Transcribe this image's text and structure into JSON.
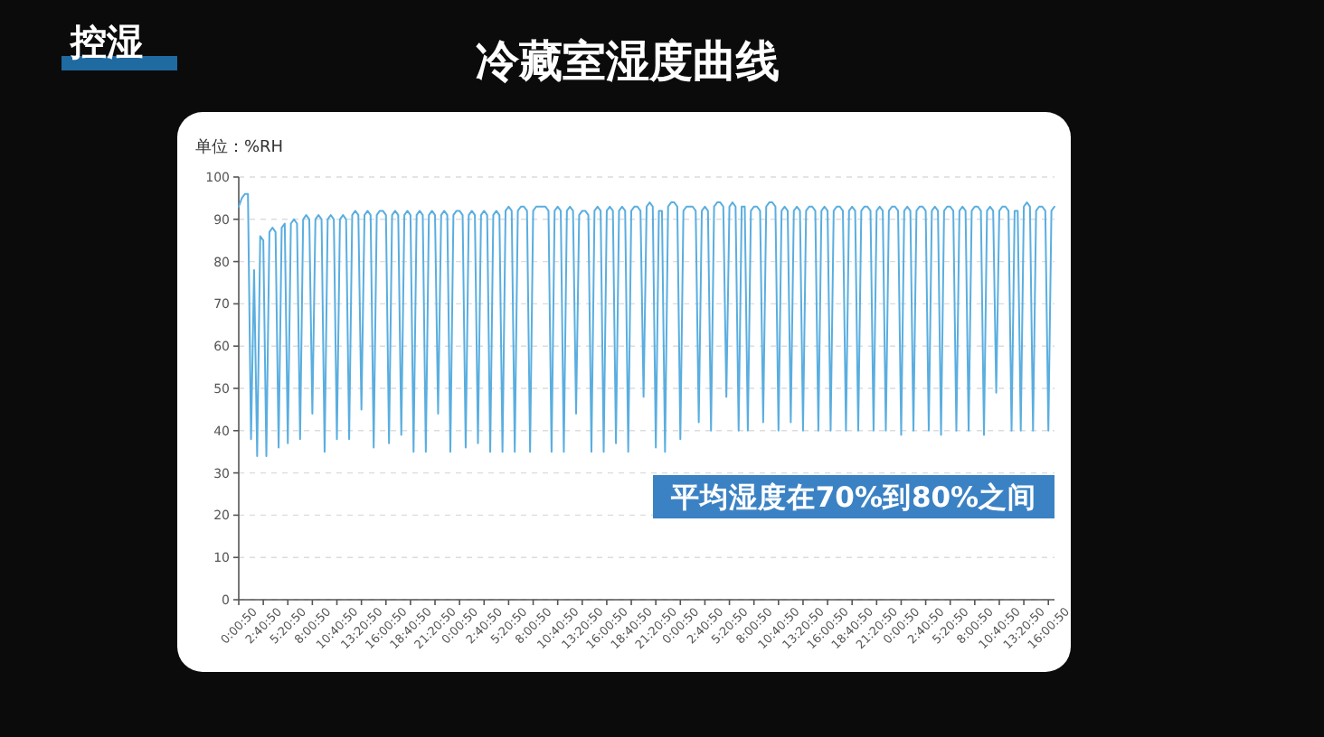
{
  "chart_data": {
    "type": "line",
    "title": "冷藏室湿度曲线",
    "ylabel": "单位：%RH",
    "annotations": [
      "控湿",
      "平均湿度在70%到80%之间"
    ],
    "categories": [
      "0:00:50",
      null,
      null,
      null,
      null,
      null,
      null,
      null,
      "2:40:50",
      null,
      null,
      null,
      null,
      null,
      null,
      null,
      "5:20:50",
      null,
      null,
      null,
      null,
      null,
      null,
      null,
      "8:00:50",
      null,
      null,
      null,
      null,
      null,
      null,
      null,
      "10:40:50",
      null,
      null,
      null,
      null,
      null,
      null,
      null,
      "13:20:50",
      null,
      null,
      null,
      null,
      null,
      null,
      null,
      "16:00:50",
      null,
      null,
      null,
      null,
      null,
      null,
      null,
      "18:40:50",
      null,
      null,
      null,
      null,
      null,
      null,
      null,
      "21:20:50",
      null,
      null,
      null,
      null,
      null,
      null,
      null,
      "0:00:50",
      null,
      null,
      null,
      null,
      null,
      null,
      null,
      "2:40:50",
      null,
      null,
      null,
      null,
      null,
      null,
      null,
      "5:20:50",
      null,
      null,
      null,
      null,
      null,
      null,
      null,
      "8:00:50",
      null,
      null,
      null,
      null,
      null,
      null,
      null,
      "10:40:50",
      null,
      null,
      null,
      null,
      null,
      null,
      null,
      "13:20:50",
      null,
      null,
      null,
      null,
      null,
      null,
      null,
      "16:00:50",
      null,
      null,
      null,
      null,
      null,
      null,
      null,
      "18:40:50",
      null,
      null,
      null,
      null,
      null,
      null,
      null,
      "21:20:50",
      null,
      null,
      null,
      null,
      null,
      null,
      null,
      "0:00:50",
      null,
      null,
      null,
      null,
      null,
      null,
      null,
      "2:40:50",
      null,
      null,
      null,
      null,
      null,
      null,
      null,
      "5:20:50",
      null,
      null,
      null,
      null,
      null,
      null,
      null,
      "8:00:50",
      null,
      null,
      null,
      null,
      null,
      null,
      null,
      "10:40:50",
      null,
      null,
      null,
      null,
      null,
      null,
      null,
      "13:20:50",
      null,
      null,
      null,
      null,
      null,
      null,
      null,
      "16:00:50",
      null,
      null,
      null,
      null,
      null,
      null,
      null,
      "18:40:50",
      null,
      null,
      null,
      null,
      null,
      null,
      null,
      "21:20:50",
      null,
      null,
      null,
      null,
      null,
      null,
      null,
      "0:00:50",
      null,
      null,
      null,
      null,
      null,
      null,
      null,
      "2:40:50",
      null,
      null,
      null,
      null,
      null,
      null,
      null,
      "5:20:50",
      null,
      null,
      null,
      null,
      null,
      null,
      null,
      "8:00:50",
      null,
      null,
      null,
      null,
      null,
      null,
      null,
      "10:40:50",
      null,
      null,
      null,
      null,
      null,
      null,
      null,
      "13:20:50",
      null,
      null,
      null,
      null,
      null,
      null,
      null,
      "16:00:50",
      null,
      null
    ],
    "series": [
      {
        "color": "#5aaee0",
        "values": [
          93,
          95,
          96,
          96,
          38,
          78,
          34,
          86,
          85,
          34,
          87,
          88,
          87,
          36,
          88,
          89,
          37,
          89,
          90,
          89,
          38,
          90,
          91,
          90,
          44,
          90,
          91,
          90,
          35,
          90,
          91,
          90,
          38,
          90,
          91,
          90,
          38,
          91,
          92,
          91,
          45,
          91,
          92,
          91,
          36,
          91,
          92,
          92,
          91,
          37,
          91,
          92,
          91,
          39,
          91,
          92,
          91,
          35,
          91,
          92,
          91,
          35,
          91,
          92,
          91,
          44,
          91,
          92,
          91,
          35,
          91,
          92,
          92,
          91,
          36,
          91,
          92,
          91,
          37,
          91,
          92,
          91,
          35,
          91,
          92,
          91,
          35,
          92,
          93,
          92,
          35,
          92,
          93,
          93,
          92,
          35,
          92,
          93,
          93,
          93,
          93,
          92,
          35,
          92,
          93,
          92,
          35,
          92,
          93,
          92,
          44,
          91,
          92,
          92,
          91,
          35,
          92,
          93,
          92,
          35,
          92,
          93,
          92,
          37,
          92,
          93,
          92,
          35,
          92,
          93,
          93,
          92,
          48,
          93,
          94,
          93,
          36,
          92,
          92,
          35,
          93,
          94,
          94,
          93,
          38,
          92,
          93,
          93,
          93,
          92,
          42,
          92,
          93,
          92,
          40,
          93,
          94,
          94,
          93,
          48,
          93,
          94,
          93,
          40,
          93,
          93,
          40,
          92,
          93,
          93,
          92,
          42,
          93,
          94,
          94,
          93,
          40,
          92,
          93,
          92,
          42,
          92,
          93,
          92,
          40,
          92,
          93,
          93,
          92,
          40,
          92,
          93,
          92,
          40,
          92,
          93,
          93,
          92,
          40,
          92,
          93,
          92,
          40,
          92,
          93,
          93,
          92,
          40,
          92,
          93,
          92,
          40,
          92,
          93,
          93,
          92,
          39,
          92,
          93,
          92,
          40,
          92,
          93,
          93,
          92,
          40,
          92,
          93,
          92,
          39,
          92,
          93,
          93,
          92,
          40,
          92,
          93,
          92,
          40,
          92,
          93,
          93,
          92,
          39,
          92,
          93,
          92,
          49,
          92,
          93,
          93,
          92,
          40,
          92,
          92,
          40,
          93,
          94,
          93,
          40,
          92,
          93,
          93,
          92,
          40,
          92,
          93
        ]
      }
    ],
    "ylim": [
      0,
      100
    ],
    "yticks": [
      0,
      10,
      20,
      30,
      40,
      50,
      60,
      70,
      80,
      90,
      100
    ],
    "grid": "y",
    "marker": "none",
    "line_style": "solid"
  }
}
